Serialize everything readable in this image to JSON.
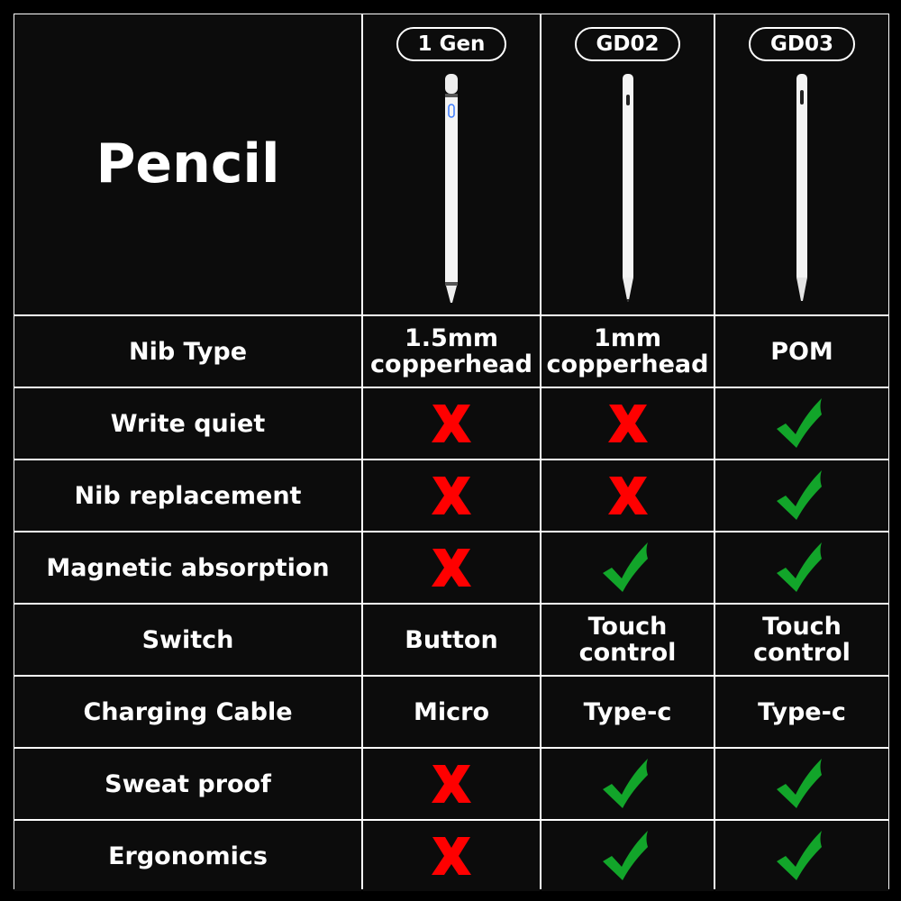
{
  "header": {
    "title": "Pencil",
    "models": [
      {
        "name": "1 Gen",
        "pencil_icon": "pencil-1gen-image"
      },
      {
        "name": "GD02",
        "pencil_icon": "pencil-gd02-image"
      },
      {
        "name": "GD03",
        "pencil_icon": "pencil-gd03-image"
      }
    ]
  },
  "colors": {
    "cross": "#ff0000",
    "check": "#12a52a",
    "background": "#0c0c0c",
    "grid": "#ffffff"
  },
  "rows": [
    {
      "feature": "Nib Type",
      "values": [
        "1.5mm\ncopperhead",
        "1mm\ncopperhead",
        "POM"
      ]
    },
    {
      "feature": "Write quiet",
      "values": [
        "cross",
        "cross",
        "check"
      ]
    },
    {
      "feature": "Nib replacement",
      "values": [
        "cross",
        "cross",
        "check"
      ]
    },
    {
      "feature": "Magnetic absorption",
      "values": [
        "cross",
        "check",
        "check"
      ]
    },
    {
      "feature": "Switch",
      "values": [
        "Button",
        "Touch\ncontrol",
        "Touch\ncontrol"
      ]
    },
    {
      "feature": "Charging Cable",
      "values": [
        "Micro",
        "Type-c",
        "Type-c"
      ]
    },
    {
      "feature": "Sweat proof",
      "values": [
        "cross",
        "check",
        "check"
      ]
    },
    {
      "feature": "Ergonomics",
      "values": [
        "cross",
        "check",
        "check"
      ]
    }
  ]
}
